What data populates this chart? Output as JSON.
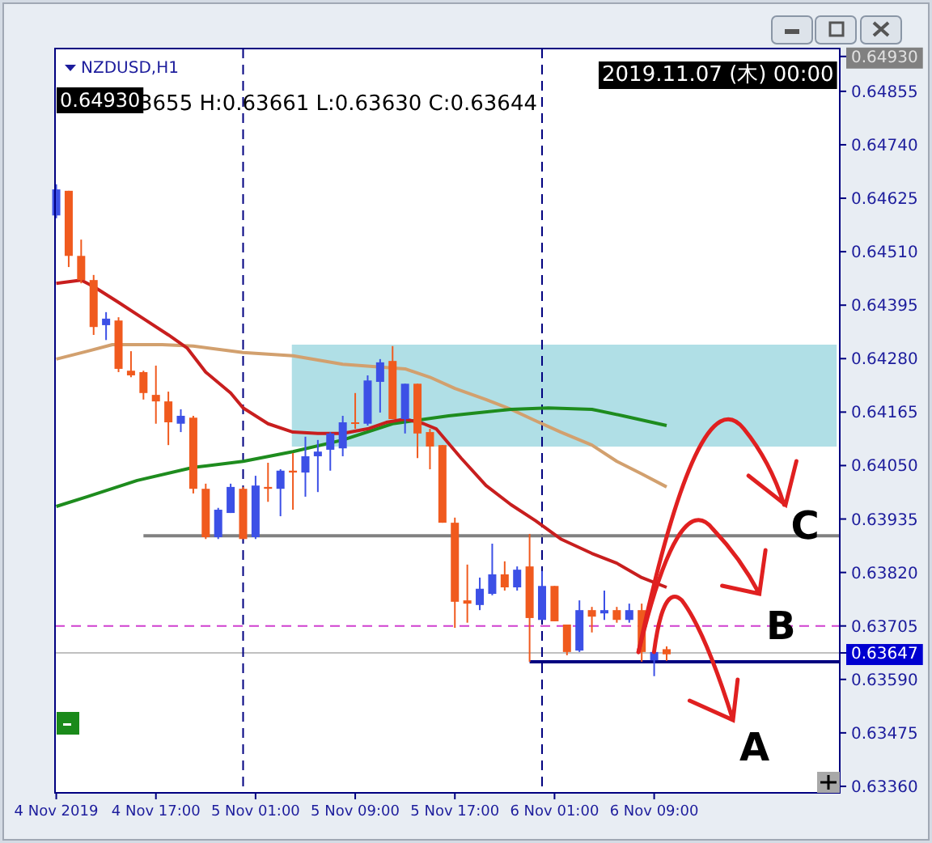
{
  "chart_data": {
    "type": "candlestick",
    "title": "NZDUSD,H1",
    "annotations": [
      "3655 H:0.63661 L:0.63630 C:0.63644",
      "0.64930",
      "2019.11.07 (木) 00:00",
      {
        "text": "C",
        "x": "2019-11-06T08:00",
        "y": 0.63649
      },
      {
        "text": "B",
        "x": "2019-11-06T08:00",
        "y": 0.63649
      },
      {
        "text": "A",
        "x": "2019-11-06T09:00",
        "y": 0.63631
      }
    ],
    "x": [
      "2019-11-04T09:00",
      "2019-11-04T10:00",
      "2019-11-04T11:00",
      "2019-11-04T12:00",
      "2019-11-04T13:00",
      "2019-11-04T14:00",
      "2019-11-04T15:00",
      "2019-11-04T16:00",
      "2019-11-04T17:00",
      "2019-11-04T18:00",
      "2019-11-04T19:00",
      "2019-11-04T20:00",
      "2019-11-04T21:00",
      "2019-11-04T22:00",
      "2019-11-04T23:00",
      "2019-11-05T00:00",
      "2019-11-05T01:00",
      "2019-11-05T02:00",
      "2019-11-05T03:00",
      "2019-11-05T04:00",
      "2019-11-05T05:00",
      "2019-11-05T06:00",
      "2019-11-05T07:00",
      "2019-11-05T08:00",
      "2019-11-05T09:00",
      "2019-11-05T10:00",
      "2019-11-05T11:00",
      "2019-11-05T12:00",
      "2019-11-05T13:00",
      "2019-11-05T14:00",
      "2019-11-05T15:00",
      "2019-11-05T16:00",
      "2019-11-05T17:00",
      "2019-11-05T18:00",
      "2019-11-05T19:00",
      "2019-11-05T20:00",
      "2019-11-05T21:00",
      "2019-11-05T22:00",
      "2019-11-05T23:00",
      "2019-11-06T00:00",
      "2019-11-06T01:00",
      "2019-11-06T02:00",
      "2019-11-06T03:00",
      "2019-11-06T04:00",
      "2019-11-06T05:00",
      "2019-11-06T06:00",
      "2019-11-06T07:00",
      "2019-11-06T08:00",
      "2019-11-06T09:00",
      "2019-11-06T10:00"
    ],
    "ohlc": [
      [
        0.64588,
        0.64655,
        0.64582,
        0.64644
      ],
      [
        0.64641,
        0.64641,
        0.64477,
        0.64501
      ],
      [
        0.64501,
        0.64536,
        0.64442,
        0.64449
      ],
      [
        0.64449,
        0.6446,
        0.64331,
        0.64348
      ],
      [
        0.64352,
        0.6438,
        0.6432,
        0.64366
      ],
      [
        0.64362,
        0.64369,
        0.64251,
        0.64258
      ],
      [
        0.64254,
        0.64296,
        0.6424,
        0.64244
      ],
      [
        0.64251,
        0.64254,
        0.64192,
        0.64206
      ],
      [
        0.64202,
        0.64265,
        0.6414,
        0.64188
      ],
      [
        0.64188,
        0.64209,
        0.64094,
        0.64143
      ],
      [
        0.6414,
        0.64171,
        0.64122,
        0.64157
      ],
      [
        0.64153,
        0.64157,
        0.6399,
        0.64
      ],
      [
        0.64,
        0.64011,
        0.63892,
        0.63896
      ],
      [
        0.63896,
        0.63959,
        0.63892,
        0.63955
      ],
      [
        0.63948,
        0.64011,
        0.63948,
        0.64004
      ],
      [
        0.64,
        0.64004,
        0.63892,
        0.63892
      ],
      [
        0.63896,
        0.64028,
        0.63892,
        0.64007
      ],
      [
        0.64004,
        0.64056,
        0.63972,
        0.64
      ],
      [
        0.64,
        0.64042,
        0.63941,
        0.64039
      ],
      [
        0.64039,
        0.64077,
        0.63955,
        0.64035
      ],
      [
        0.64035,
        0.64112,
        0.63983,
        0.6407
      ],
      [
        0.6407,
        0.64105,
        0.63993,
        0.6408
      ],
      [
        0.64084,
        0.64122,
        0.64039,
        0.64119
      ],
      [
        0.64087,
        0.64157,
        0.6407,
        0.64143
      ],
      [
        0.64143,
        0.64206,
        0.64129,
        0.6414
      ],
      [
        0.6414,
        0.64244,
        0.64136,
        0.64233
      ],
      [
        0.6423,
        0.64279,
        0.64164,
        0.64272
      ],
      [
        0.64275,
        0.64307,
        0.6415,
        0.6415
      ],
      [
        0.6415,
        0.64226,
        0.64119,
        0.64226
      ],
      [
        0.64226,
        0.64226,
        0.64066,
        0.64119
      ],
      [
        0.64122,
        0.64129,
        0.64042,
        0.64091
      ],
      [
        0.64094,
        0.64094,
        0.63927,
        0.63927
      ],
      [
        0.63927,
        0.63938,
        0.63701,
        0.63757
      ],
      [
        0.6376,
        0.63837,
        0.63712,
        0.63753
      ],
      [
        0.6375,
        0.63809,
        0.63739,
        0.63785
      ],
      [
        0.63774,
        0.63882,
        0.63771,
        0.63816
      ],
      [
        0.63816,
        0.63844,
        0.63781,
        0.63788
      ],
      [
        0.63788,
        0.63833,
        0.63781,
        0.63826
      ],
      [
        0.63833,
        0.63903,
        0.63628,
        0.63722
      ],
      [
        0.63718,
        0.63823,
        0.63718,
        0.63791
      ],
      [
        0.63791,
        0.63791,
        0.63715,
        0.63715
      ],
      [
        0.63708,
        0.63708,
        0.63642,
        0.63649
      ],
      [
        0.63652,
        0.6376,
        0.63649,
        0.63739
      ],
      [
        0.63739,
        0.63746,
        0.63691,
        0.63725
      ],
      [
        0.63732,
        0.63781,
        0.63718,
        0.63739
      ],
      [
        0.63739,
        0.63746,
        0.63712,
        0.63718
      ],
      [
        0.63718,
        0.63753,
        0.63712,
        0.63739
      ],
      [
        0.63739,
        0.63753,
        0.63628,
        0.63649
      ],
      [
        0.63631,
        0.63652,
        0.63597,
        0.63649
      ],
      [
        0.63655,
        0.63661,
        0.6363,
        0.63644
      ]
    ],
    "colors": [
      "#3c50e6",
      "#f05a1e",
      "#f05a1e",
      "#f05a1e",
      "#3c50e6",
      "#f05a1e",
      "#f05a1e",
      "#f05a1e",
      "#f05a1e",
      "#f05a1e",
      "#3c50e6",
      "#f05a1e",
      "#f05a1e",
      "#3c50e6",
      "#3c50e6",
      "#f05a1e",
      "#3c50e6",
      "#f05a1e",
      "#3c50e6",
      "#f05a1e",
      "#3c50e6",
      "#3c50e6",
      "#3c50e6",
      "#3c50e6",
      "#f05a1e",
      "#3c50e6",
      "#3c50e6",
      "#f05a1e",
      "#3c50e6",
      "#f05a1e",
      "#f05a1e",
      "#f05a1e",
      "#f05a1e",
      "#f05a1e",
      "#3c50e6",
      "#3c50e6",
      "#f05a1e",
      "#3c50e6",
      "#f05a1e",
      "#3c50e6",
      "#f05a1e",
      "#f05a1e",
      "#3c50e6",
      "#f05a1e",
      "#3c50e6",
      "#f05a1e",
      "#3c50e6",
      "#f05a1e",
      "#3c50e6",
      "#f05a1e"
    ],
    "series": [
      {
        "type": "line",
        "color": "#808080",
        "x": [
          "2019-11-04T16:00",
          "2019-11-06T23:54"
        ],
        "values": [
          0.63899,
          0.63899
        ]
      },
      {
        "type": "line",
        "color": "#000080",
        "x": [
          "2019-11-05T23:00",
          "2019-11-06T23:54"
        ],
        "values": [
          0.63628,
          0.63628
        ]
      },
      {
        "type": "line",
        "color": "#d2a06e",
        "x": [
          "2019-11-04T09:00",
          "2019-11-04T11:30",
          "2019-11-04T13:30",
          "2019-11-04T17:30",
          "2019-11-04T20:00",
          "2019-11-05T00:00",
          "2019-11-05T04:00",
          "2019-11-05T08:00",
          "2019-11-05T13:00",
          "2019-11-05T15:00",
          "2019-11-05T17:00",
          "2019-11-05T19:30",
          "2019-11-05T21:30",
          "2019-11-05T23:30",
          "2019-11-06T01:30",
          "2019-11-06T04:00",
          "2019-11-06T06:00",
          "2019-11-06T08:00",
          "2019-11-06T10:00"
        ],
        "values": [
          0.64279,
          0.64296,
          0.6431,
          0.6431,
          0.64307,
          0.64293,
          0.64286,
          0.64268,
          0.64258,
          0.6424,
          0.64216,
          0.64192,
          0.64171,
          0.64146,
          0.64122,
          0.64094,
          0.64059,
          0.64032,
          0.64004
        ]
      },
      {
        "type": "line",
        "color": "#1e8c1e",
        "x": [
          "2019-11-04T09:00",
          "2019-11-04T11:30",
          "2019-11-04T15:30",
          "2019-11-04T20:00",
          "2019-11-05T00:00",
          "2019-11-05T04:00",
          "2019-11-05T08:00",
          "2019-11-05T12:00",
          "2019-11-05T16:30",
          "2019-11-05T21:30",
          "2019-11-06T00:30",
          "2019-11-06T04:00",
          "2019-11-06T06:30",
          "2019-11-06T10:00"
        ],
        "values": [
          0.63962,
          0.63983,
          0.64018,
          0.64046,
          0.64059,
          0.6408,
          0.64105,
          0.6414,
          0.64157,
          0.64171,
          0.64174,
          0.64171,
          0.64157,
          0.64136
        ]
      },
      {
        "type": "line",
        "color": "#c81e1e",
        "x": [
          "2019-11-04T09:00",
          "2019-11-04T11:00",
          "2019-11-04T12:00",
          "2019-11-04T14:00",
          "2019-11-04T16:00",
          "2019-11-04T18:00",
          "2019-11-04T19:30",
          "2019-11-04T21:00",
          "2019-11-04T23:00",
          "2019-11-05T00:00",
          "2019-11-05T02:00",
          "2019-11-05T04:00",
          "2019-11-05T06:00",
          "2019-11-05T08:00",
          "2019-11-05T10:00",
          "2019-11-05T11:30",
          "2019-11-05T13:00",
          "2019-11-05T14:30",
          "2019-11-05T15:30",
          "2019-11-05T17:30",
          "2019-11-05T19:30",
          "2019-11-05T21:30",
          "2019-11-05T23:30",
          "2019-11-06T01:30",
          "2019-11-06T04:00",
          "2019-11-06T06:00",
          "2019-11-06T08:00",
          "2019-11-06T10:00"
        ],
        "values": [
          0.64442,
          0.64449,
          0.64435,
          0.64401,
          0.64366,
          0.64331,
          0.64303,
          0.64251,
          0.64206,
          0.64174,
          0.6414,
          0.64122,
          0.64119,
          0.64119,
          0.64129,
          0.64143,
          0.6415,
          0.6414,
          0.64129,
          0.64066,
          0.64007,
          0.63966,
          0.63931,
          0.63892,
          0.63861,
          0.6384,
          0.63809,
          0.63788
        ]
      }
    ],
    "ref_lines": [
      {
        "axis": "y",
        "value": 0.63705,
        "color": "#d040d0",
        "line_style": "dashed"
      },
      {
        "axis": "y",
        "value": 0.63647,
        "color": "#c0c0c0"
      },
      {
        "axis": "x",
        "value": "2019-11-05T00:00",
        "color": "#000080",
        "line_style": "dashed"
      },
      {
        "axis": "x",
        "value": "2019-11-06T00:00",
        "color": "#000080",
        "line_style": "dashed"
      }
    ],
    "xlim": [
      "2019-11-04T08:54",
      "2019-11-06T23:54"
    ],
    "ylim": [
      0.63346,
      0.64947
    ],
    "xticks": [
      {
        "value": "2019-11-04T09:00",
        "label": "4 Nov 2019"
      },
      {
        "value": "2019-11-04T17:00",
        "label": "4 Nov 17:00"
      },
      {
        "value": "2019-11-05T01:00",
        "label": "5 Nov 01:00"
      },
      {
        "value": "2019-11-05T09:00",
        "label": "5 Nov 09:00"
      },
      {
        "value": "2019-11-05T17:00",
        "label": "5 Nov 17:00"
      },
      {
        "value": "2019-11-06T01:00",
        "label": "6 Nov 01:00"
      },
      {
        "value": "2019-11-06T09:00",
        "label": "6 Nov 09:00"
      }
    ],
    "yticks": [
      {
        "value": 0.6336,
        "label": "0.63360"
      },
      {
        "value": 0.63475,
        "label": "0.63475"
      },
      {
        "value": 0.6359,
        "label": "0.63590"
      },
      {
        "value": 0.63647,
        "label": "0.63647"
      },
      {
        "value": 0.63705,
        "label": "0.63705"
      },
      {
        "value": 0.6382,
        "label": "0.63820"
      },
      {
        "value": 0.63935,
        "label": "0.63935"
      },
      {
        "value": 0.6405,
        "label": "0.64050"
      },
      {
        "value": 0.64165,
        "label": "0.64165"
      },
      {
        "value": 0.6428,
        "label": "0.64280"
      },
      {
        "value": 0.64395,
        "label": "0.64395"
      },
      {
        "value": 0.6451,
        "label": "0.64510"
      },
      {
        "value": 0.64625,
        "label": "0.64625"
      },
      {
        "value": 0.6474,
        "label": "0.64740"
      },
      {
        "value": 0.64855,
        "label": "0.64855"
      },
      {
        "value": 0.6493,
        "label": "0.64930"
      }
    ],
    "grid": false
  }
}
